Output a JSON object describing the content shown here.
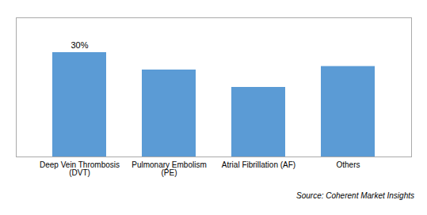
{
  "chart_data": {
    "type": "bar",
    "categories": [
      "Deep Vein Thrombosis\n(DVT)",
      "Pulmonary Embolism\n(PE)",
      "Atrial Fibrillation (AF)",
      "Others"
    ],
    "values": [
      30,
      25,
      20,
      26
    ],
    "value_labels": [
      "30%",
      null,
      null,
      null
    ],
    "color": "#5B9BD5",
    "ylim": [
      0,
      40
    ],
    "yticks": [],
    "tick_labels": "x",
    "grid": false,
    "caption": "Source: Coherent Market Insights"
  }
}
